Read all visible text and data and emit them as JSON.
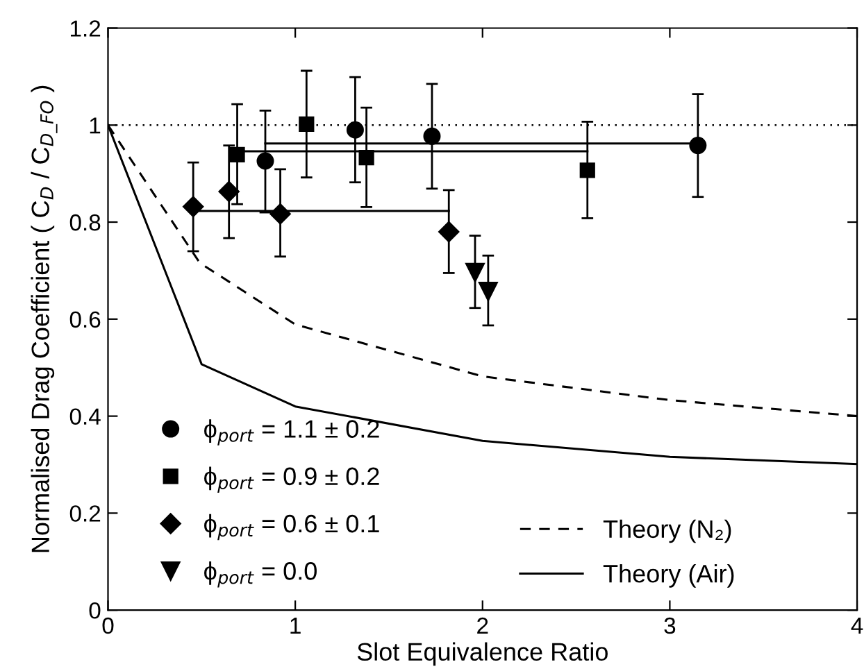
{
  "chart_data": {
    "type": "scatter",
    "xlabel": "Slot Equivalence Ratio",
    "ylabel": "Normalised Drag Coefficient ( C$_{D}$ / C$_{D_FO}$ )",
    "xlim": [
      0,
      4
    ],
    "xticks": [
      0,
      1,
      2,
      3,
      4
    ],
    "ylim": [
      0,
      1.2
    ],
    "yticks": [
      0,
      0.2,
      0.4,
      0.6,
      0.8,
      1,
      1.2
    ],
    "grid": false,
    "legend": "bottom",
    "ref_lines": [
      {
        "axis": "y",
        "value": 1,
        "line_style": "dotted",
        "color": "#000000"
      }
    ],
    "series": [
      {
        "name": "ϕ$_{port}$ = 1.1 ± 0.2",
        "marker": "circle",
        "color": "#000000",
        "x": [
          0.84,
          1.32,
          1.73,
          3.15
        ],
        "values": [
          0.926,
          0.99,
          0.977,
          0.958
        ],
        "errors": [
          [
            0.82,
            1.03
          ],
          [
            0.882,
            1.099
          ],
          [
            0.869,
            1.085
          ],
          [
            0.852,
            1.064
          ]
        ]
      },
      {
        "name": "ϕ$_{port}$ = 0.9 ± 0.2",
        "marker": "square",
        "color": "#000000",
        "x": [
          0.69,
          1.06,
          1.38,
          2.56
        ],
        "values": [
          0.939,
          1.002,
          0.933,
          0.907
        ],
        "errors": [
          [
            0.837,
            1.043
          ],
          [
            0.892,
            1.112
          ],
          [
            0.831,
            1.036
          ],
          [
            0.808,
            1.007
          ]
        ]
      },
      {
        "name": "ϕ$_{port}$ = 0.6 ± 0.1",
        "marker": "diamond",
        "color": "#000000",
        "x": [
          0.455,
          0.646,
          0.92,
          1.82
        ],
        "values": [
          0.832,
          0.863,
          0.817,
          0.78
        ],
        "errors": [
          [
            0.74,
            0.923
          ],
          [
            0.767,
            0.958
          ],
          [
            0.729,
            0.909
          ],
          [
            0.695,
            0.866
          ]
        ]
      },
      {
        "name": "ϕ$_{port}$ = 0.0",
        "marker": "triangle",
        "color": "#000000",
        "x": [
          1.96,
          2.03
        ],
        "values": [
          0.696,
          0.657
        ],
        "errors": [
          [
            0.623,
            0.772
          ],
          [
            0.587,
            0.731
          ]
        ]
      },
      {
        "type": "line",
        "line_style": "solid",
        "color": "#000000",
        "x": [
          0.84,
          3.15
        ],
        "values": [
          0.962,
          0.962
        ]
      },
      {
        "type": "line",
        "line_style": "solid",
        "color": "#000000",
        "x": [
          0.69,
          2.56
        ],
        "values": [
          0.946,
          0.946
        ]
      },
      {
        "type": "line",
        "line_style": "solid",
        "color": "#000000",
        "x": [
          0.455,
          1.82
        ],
        "values": [
          0.823,
          0.823
        ]
      },
      {
        "name": "Theory (N₂)",
        "type": "line",
        "line_style": "dashed",
        "color": "#000000",
        "x": [
          0,
          0.49,
          1,
          2,
          3,
          4
        ],
        "values": [
          1,
          0.716,
          0.589,
          0.482,
          0.433,
          0.4
        ]
      },
      {
        "name": "Theory (Air)",
        "type": "line",
        "line_style": "solid",
        "color": "#000000",
        "x": [
          0,
          0.5,
          1,
          2,
          3,
          4
        ],
        "values": [
          1,
          0.507,
          0.42,
          0.349,
          0.316,
          0.301
        ]
      }
    ]
  }
}
